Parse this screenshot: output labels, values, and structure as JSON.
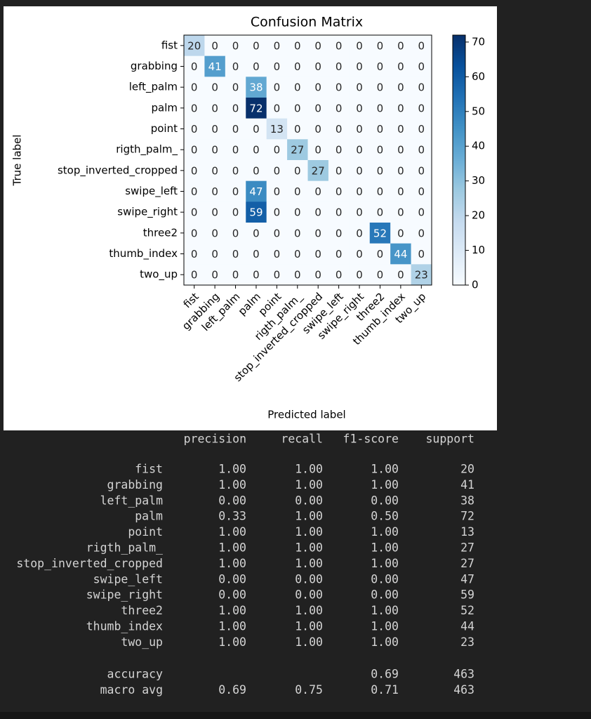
{
  "chart_data": {
    "type": "heatmap",
    "title": "Confusion Matrix",
    "xlabel": "Predicted label",
    "ylabel": "True label",
    "labels": [
      "fist",
      "grabbing",
      "left_palm",
      "palm",
      "point",
      "rigth_palm_",
      "stop_inverted_cropped",
      "swipe_left",
      "swipe_right",
      "three2",
      "thumb_index",
      "two_up"
    ],
    "matrix": [
      [
        20,
        0,
        0,
        0,
        0,
        0,
        0,
        0,
        0,
        0,
        0,
        0
      ],
      [
        0,
        41,
        0,
        0,
        0,
        0,
        0,
        0,
        0,
        0,
        0,
        0
      ],
      [
        0,
        0,
        0,
        38,
        0,
        0,
        0,
        0,
        0,
        0,
        0,
        0
      ],
      [
        0,
        0,
        0,
        72,
        0,
        0,
        0,
        0,
        0,
        0,
        0,
        0
      ],
      [
        0,
        0,
        0,
        0,
        13,
        0,
        0,
        0,
        0,
        0,
        0,
        0
      ],
      [
        0,
        0,
        0,
        0,
        0,
        27,
        0,
        0,
        0,
        0,
        0,
        0
      ],
      [
        0,
        0,
        0,
        0,
        0,
        0,
        27,
        0,
        0,
        0,
        0,
        0
      ],
      [
        0,
        0,
        0,
        47,
        0,
        0,
        0,
        0,
        0,
        0,
        0,
        0
      ],
      [
        0,
        0,
        0,
        59,
        0,
        0,
        0,
        0,
        0,
        0,
        0,
        0
      ],
      [
        0,
        0,
        0,
        0,
        0,
        0,
        0,
        0,
        0,
        52,
        0,
        0
      ],
      [
        0,
        0,
        0,
        0,
        0,
        0,
        0,
        0,
        0,
        0,
        44,
        0
      ],
      [
        0,
        0,
        0,
        0,
        0,
        0,
        0,
        0,
        0,
        0,
        0,
        23
      ]
    ],
    "colormap": "Blues",
    "clim": [
      0,
      72
    ],
    "colorbar_ticks": [
      0,
      10,
      20,
      30,
      40,
      50,
      60,
      70
    ]
  },
  "report": {
    "columns": [
      "precision",
      "recall",
      "f1-score",
      "support"
    ],
    "rows": [
      [
        "fist",
        "1.00",
        "1.00",
        "1.00",
        "20"
      ],
      [
        "grabbing",
        "1.00",
        "1.00",
        "1.00",
        "41"
      ],
      [
        "left_palm",
        "0.00",
        "0.00",
        "0.00",
        "38"
      ],
      [
        "palm",
        "0.33",
        "1.00",
        "0.50",
        "72"
      ],
      [
        "point",
        "1.00",
        "1.00",
        "1.00",
        "13"
      ],
      [
        "rigth_palm_",
        "1.00",
        "1.00",
        "1.00",
        "27"
      ],
      [
        "stop_inverted_cropped",
        "1.00",
        "1.00",
        "1.00",
        "27"
      ],
      [
        "swipe_left",
        "0.00",
        "0.00",
        "0.00",
        "47"
      ],
      [
        "swipe_right",
        "0.00",
        "0.00",
        "0.00",
        "59"
      ],
      [
        "three2",
        "1.00",
        "1.00",
        "1.00",
        "52"
      ],
      [
        "thumb_index",
        "1.00",
        "1.00",
        "1.00",
        "44"
      ],
      [
        "two_up",
        "1.00",
        "1.00",
        "1.00",
        "23"
      ]
    ],
    "summary": [
      [
        "accuracy",
        null,
        null,
        "0.69",
        "463"
      ],
      [
        "macro avg",
        "0.69",
        "0.75",
        "0.71",
        "463"
      ]
    ]
  }
}
